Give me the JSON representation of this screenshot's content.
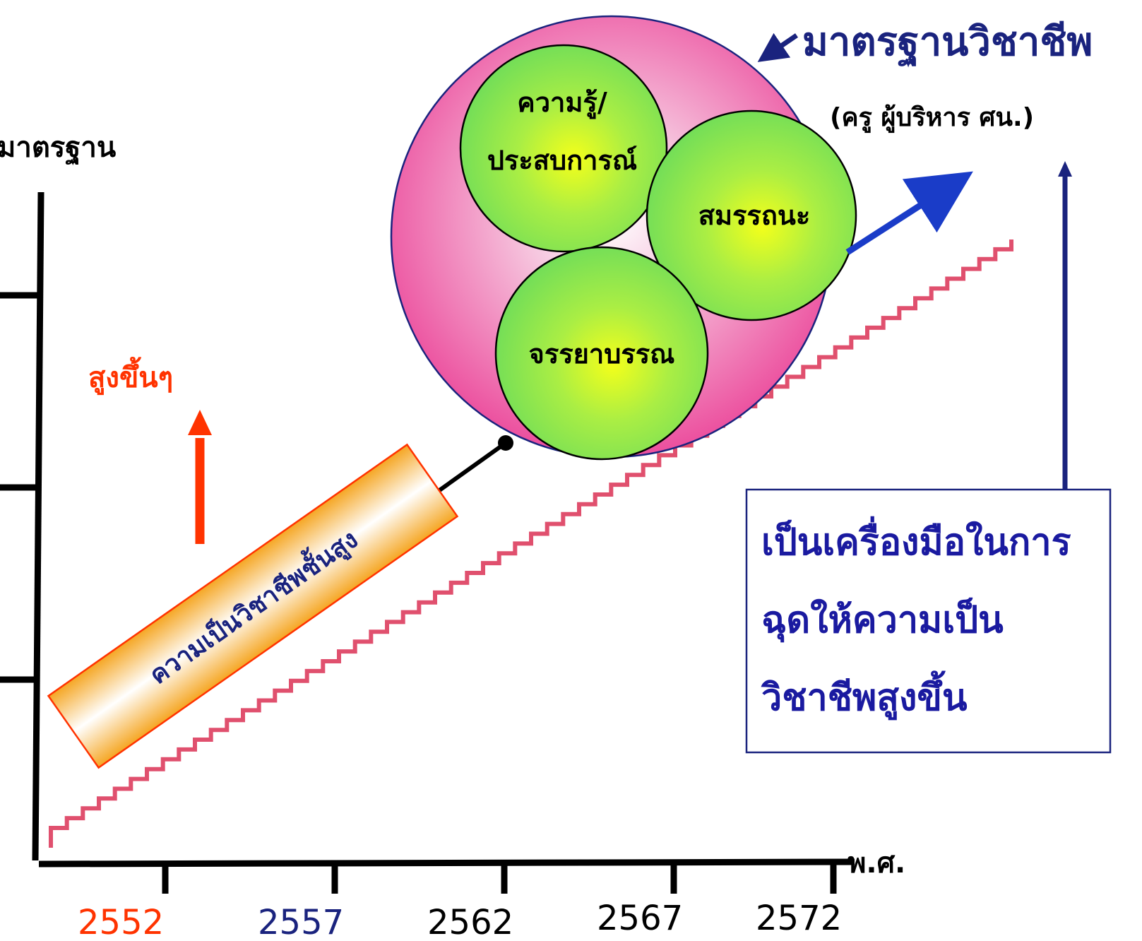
{
  "colors": {
    "axis": "#000000",
    "staircase": "#e0506e",
    "outer_circle": "#ec4f9e",
    "inner_circle": "#7ee25a",
    "rising_arrow": "#ff3300",
    "blue_arrow": "#1a3cc8",
    "navy": "#1a237e",
    "box_border": "#1a237e",
    "banner_fill": "#f5a623"
  },
  "axes": {
    "y_label": "มาตรฐาน",
    "x_unit": "พ.ศ.",
    "x_ticks": [
      {
        "label": "2552",
        "color": "#ff3300"
      },
      {
        "label": "2557",
        "color": "#1a237e"
      },
      {
        "label": "2562",
        "color": "#000000"
      },
      {
        "label": "2567",
        "color": "#000000"
      },
      {
        "label": "2572",
        "color": "#000000"
      }
    ]
  },
  "rising_label": "สูงขึ้นๆ",
  "banner_label": "ความเป็นวิชาชีพชั้นสูง",
  "standard": {
    "title": "มาตรฐานวิชาชีพ",
    "subtitle": "(ครู ผู้บริหาร ศน.)",
    "components": [
      {
        "label_lines": [
          "ความรู้/",
          "ประสบการณ์"
        ]
      },
      {
        "label_lines": [
          "สมรรถนะ"
        ]
      },
      {
        "label_lines": [
          "จรรยาบรรณ"
        ]
      }
    ]
  },
  "tool_box": {
    "lines": [
      "เป็นเครื่องมือในการ",
      "ฉุดให้ความเป็น",
      "วิชาชีพสูงขึ้น"
    ]
  },
  "icons": {
    "rising": "arrow-up-icon",
    "pointer": "arrow-pointer-icon",
    "diagonal": "arrow-diagonal-icon",
    "vertical": "arrow-up-icon"
  }
}
